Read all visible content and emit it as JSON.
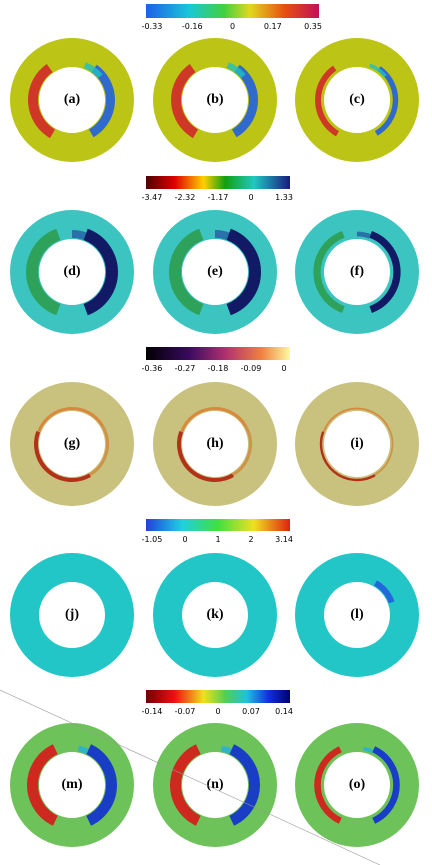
{
  "rows": [
    {
      "colorbar_ticks": [
        "-0.33",
        "-0.16",
        "0",
        "0.17",
        "0.35"
      ],
      "panels": [
        "(a)",
        "(b)",
        "(c)"
      ]
    },
    {
      "colorbar_ticks": [
        "-3.47",
        "-2.32",
        "-1.17",
        "0",
        "1.33"
      ],
      "panels": [
        "(d)",
        "(e)",
        "(f)"
      ]
    },
    {
      "colorbar_ticks": [
        "-0.36",
        "-0.27",
        "-0.18",
        "-0.09",
        "0"
      ],
      "panels": [
        "(g)",
        "(h)",
        "(i)"
      ]
    },
    {
      "colorbar_ticks": [
        "-1.05",
        "0",
        "1",
        "2",
        "3.14"
      ],
      "panels": [
        "(j)",
        "(k)",
        "(l)"
      ]
    },
    {
      "colorbar_ticks": [
        "-0.14",
        "-0.07",
        "0",
        "0.07",
        "0.14"
      ],
      "panels": [
        "(m)",
        "(n)",
        "(o)"
      ]
    }
  ]
}
